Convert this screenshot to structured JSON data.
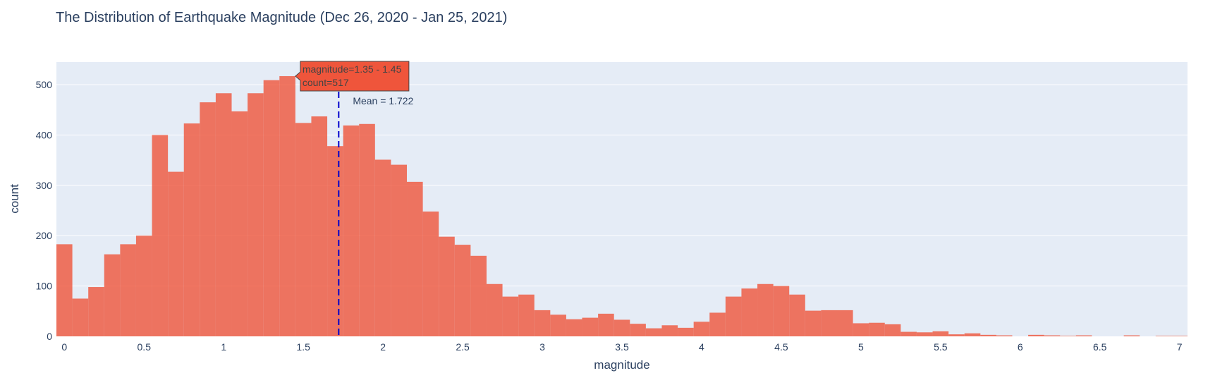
{
  "chart_data": {
    "type": "bar",
    "title": "The Distribution of Earthquake Magnitude (Dec 26, 2020 - Jan 25, 2021)",
    "xlabel": "magnitude",
    "ylabel": "count",
    "xlim": [
      -0.05,
      7.05
    ],
    "ylim": [
      0,
      545
    ],
    "bin_width": 0.1,
    "bar_color": "#ef553b",
    "plot_bg": "#e5ecf6",
    "grid": true,
    "x_ticks": [
      0,
      0.5,
      1,
      1.5,
      2,
      2.5,
      3,
      3.5,
      4,
      4.5,
      5,
      5.5,
      6,
      6.5,
      7
    ],
    "x_tick_labels": [
      "0",
      "0.5",
      "1",
      "1.5",
      "2",
      "2.5",
      "3",
      "3.5",
      "4",
      "4.5",
      "5",
      "5.5",
      "6",
      "6.5",
      "7"
    ],
    "y_ticks": [
      0,
      100,
      200,
      300,
      400,
      500
    ],
    "y_tick_labels": [
      "0",
      "100",
      "200",
      "300",
      "400",
      "500"
    ],
    "bins_start": [
      -0.05,
      0.05,
      0.15,
      0.25,
      0.35,
      0.45,
      0.55,
      0.65,
      0.75,
      0.85,
      0.95,
      1.05,
      1.15,
      1.25,
      1.35,
      1.45,
      1.55,
      1.65,
      1.75,
      1.85,
      1.95,
      2.05,
      2.15,
      2.25,
      2.35,
      2.45,
      2.55,
      2.65,
      2.75,
      2.85,
      2.95,
      3.05,
      3.15,
      3.25,
      3.35,
      3.45,
      3.55,
      3.65,
      3.75,
      3.85,
      3.95,
      4.05,
      4.15,
      4.25,
      4.35,
      4.45,
      4.55,
      4.65,
      4.75,
      4.85,
      4.95,
      5.05,
      5.15,
      5.25,
      5.35,
      5.45,
      5.55,
      5.65,
      5.75,
      5.85,
      5.95,
      6.05,
      6.15,
      6.25,
      6.35,
      6.45,
      6.55,
      6.65,
      6.75,
      6.85,
      6.95
    ],
    "values": [
      183,
      75,
      98,
      163,
      183,
      200,
      400,
      327,
      423,
      465,
      483,
      447,
      483,
      509,
      517,
      424,
      437,
      378,
      419,
      422,
      351,
      341,
      307,
      248,
      198,
      182,
      160,
      104,
      79,
      83,
      52,
      43,
      34,
      37,
      45,
      33,
      25,
      16,
      22,
      17,
      29,
      47,
      79,
      95,
      104,
      100,
      83,
      51,
      52,
      52,
      26,
      27,
      24,
      9,
      8,
      10,
      4,
      6,
      3,
      2,
      0,
      3,
      2,
      1,
      2,
      0,
      0,
      2,
      0,
      1,
      1
    ],
    "mean": {
      "value": 1.722,
      "label": "Mean = 1.722",
      "color": "#0000cc"
    },
    "hover": {
      "line1": "magnitude=1.35 - 1.45",
      "line2": "count=517",
      "bin_index": 14
    }
  }
}
